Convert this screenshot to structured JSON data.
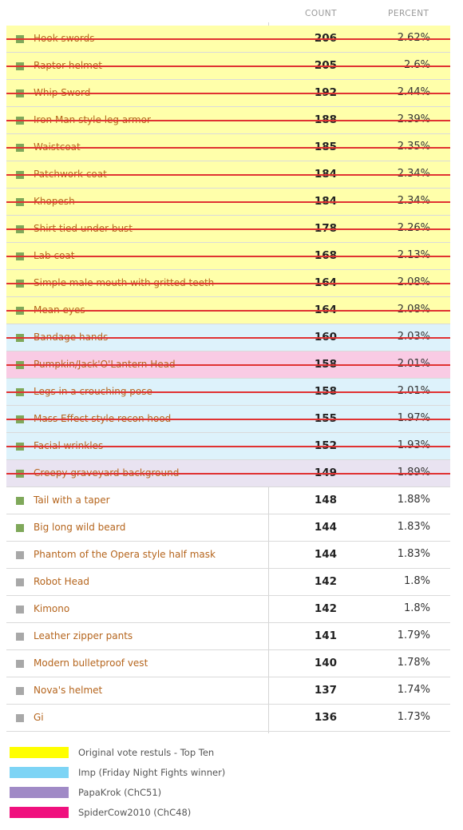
{
  "header": {
    "count_label": "COUNT",
    "percent_label": "PERCENT"
  },
  "colors": {
    "yellow": "#ffffaa",
    "blue": "#ddf2fb",
    "pink": "#f9cbe4",
    "purple": "#e9e3f1",
    "green_square": "#7fa85a",
    "gray_square": "#a8a8a8",
    "strike": "#e03232"
  },
  "rows": [
    {
      "name": "Hook swords",
      "count": "206",
      "percent": "2.62%",
      "group": "yellow",
      "square": "green",
      "struck": true
    },
    {
      "name": "Raptor helmet",
      "count": "205",
      "percent": "2.6%",
      "group": "yellow",
      "square": "green",
      "struck": true
    },
    {
      "name": "Whip Sword",
      "count": "192",
      "percent": "2.44%",
      "group": "yellow",
      "square": "green",
      "struck": true
    },
    {
      "name": "Iron Man style leg armor",
      "count": "188",
      "percent": "2.39%",
      "group": "yellow",
      "square": "green",
      "struck": true
    },
    {
      "name": "Waistcoat",
      "count": "185",
      "percent": "2.35%",
      "group": "yellow",
      "square": "green",
      "struck": true
    },
    {
      "name": "Patchwork coat",
      "count": "184",
      "percent": "2.34%",
      "group": "yellow",
      "square": "green",
      "struck": true
    },
    {
      "name": "Khopesh",
      "count": "184",
      "percent": "2.34%",
      "group": "yellow",
      "square": "green",
      "struck": true
    },
    {
      "name": "Shirt tied under bust",
      "count": "178",
      "percent": "2.26%",
      "group": "yellow",
      "square": "green",
      "struck": true
    },
    {
      "name": "Lab coat",
      "count": "168",
      "percent": "2.13%",
      "group": "yellow",
      "square": "green",
      "struck": true
    },
    {
      "name": "Simple male mouth with gritted teeth",
      "count": "164",
      "percent": "2.08%",
      "group": "yellow",
      "square": "green",
      "struck": true
    },
    {
      "name": "Mean eyes",
      "count": "164",
      "percent": "2.08%",
      "group": "yellow",
      "square": "green",
      "struck": true
    },
    {
      "name": "Bandage hands",
      "count": "160",
      "percent": "2.03%",
      "group": "blue",
      "square": "green",
      "struck": true
    },
    {
      "name": "Pumpkin/Jack'O'Lantern Head",
      "count": "158",
      "percent": "2.01%",
      "group": "pink",
      "square": "green",
      "struck": true
    },
    {
      "name": "Legs in a crouching pose",
      "count": "158",
      "percent": "2.01%",
      "group": "blue",
      "square": "green",
      "struck": true
    },
    {
      "name": "Mass Effect style recon hood",
      "count": "155",
      "percent": "1.97%",
      "group": "blue",
      "square": "green",
      "struck": true
    },
    {
      "name": "Facial wrinkles",
      "count": "152",
      "percent": "1.93%",
      "group": "blue",
      "square": "green",
      "struck": true
    },
    {
      "name": "Creepy graveyard background",
      "count": "149",
      "percent": "1.89%",
      "group": "purple",
      "square": "green",
      "struck": true
    },
    {
      "name": "Tail with a taper",
      "count": "148",
      "percent": "1.88%",
      "group": "none",
      "square": "green",
      "struck": false
    },
    {
      "name": "Big long wild beard",
      "count": "144",
      "percent": "1.83%",
      "group": "none",
      "square": "green",
      "struck": false
    },
    {
      "name": "Phantom of the Opera style half mask",
      "count": "144",
      "percent": "1.83%",
      "group": "none",
      "square": "gray",
      "struck": false
    },
    {
      "name": "Robot Head",
      "count": "142",
      "percent": "1.8%",
      "group": "none",
      "square": "gray",
      "struck": false
    },
    {
      "name": "Kimono",
      "count": "142",
      "percent": "1.8%",
      "group": "none",
      "square": "gray",
      "struck": false
    },
    {
      "name": "Leather zipper pants",
      "count": "141",
      "percent": "1.79%",
      "group": "none",
      "square": "gray",
      "struck": false
    },
    {
      "name": "Modern bulletproof vest",
      "count": "140",
      "percent": "1.78%",
      "group": "none",
      "square": "gray",
      "struck": false
    },
    {
      "name": "Nova's helmet",
      "count": "137",
      "percent": "1.74%",
      "group": "none",
      "square": "gray",
      "struck": false
    },
    {
      "name": "Gi",
      "count": "136",
      "percent": "1.73%",
      "group": "none",
      "square": "gray",
      "struck": false
    }
  ],
  "legend": [
    {
      "label": "Original vote restuls - Top Ten",
      "color": "#ffff00"
    },
    {
      "label": "Imp (Friday Night Fights winner)",
      "color": "#7dd4f5"
    },
    {
      "label": "PapaKrok (ChC51)",
      "color": "#a08ac6"
    },
    {
      "label": "SpiderCow2010 (ChC48)",
      "color": "#f0107e"
    }
  ]
}
